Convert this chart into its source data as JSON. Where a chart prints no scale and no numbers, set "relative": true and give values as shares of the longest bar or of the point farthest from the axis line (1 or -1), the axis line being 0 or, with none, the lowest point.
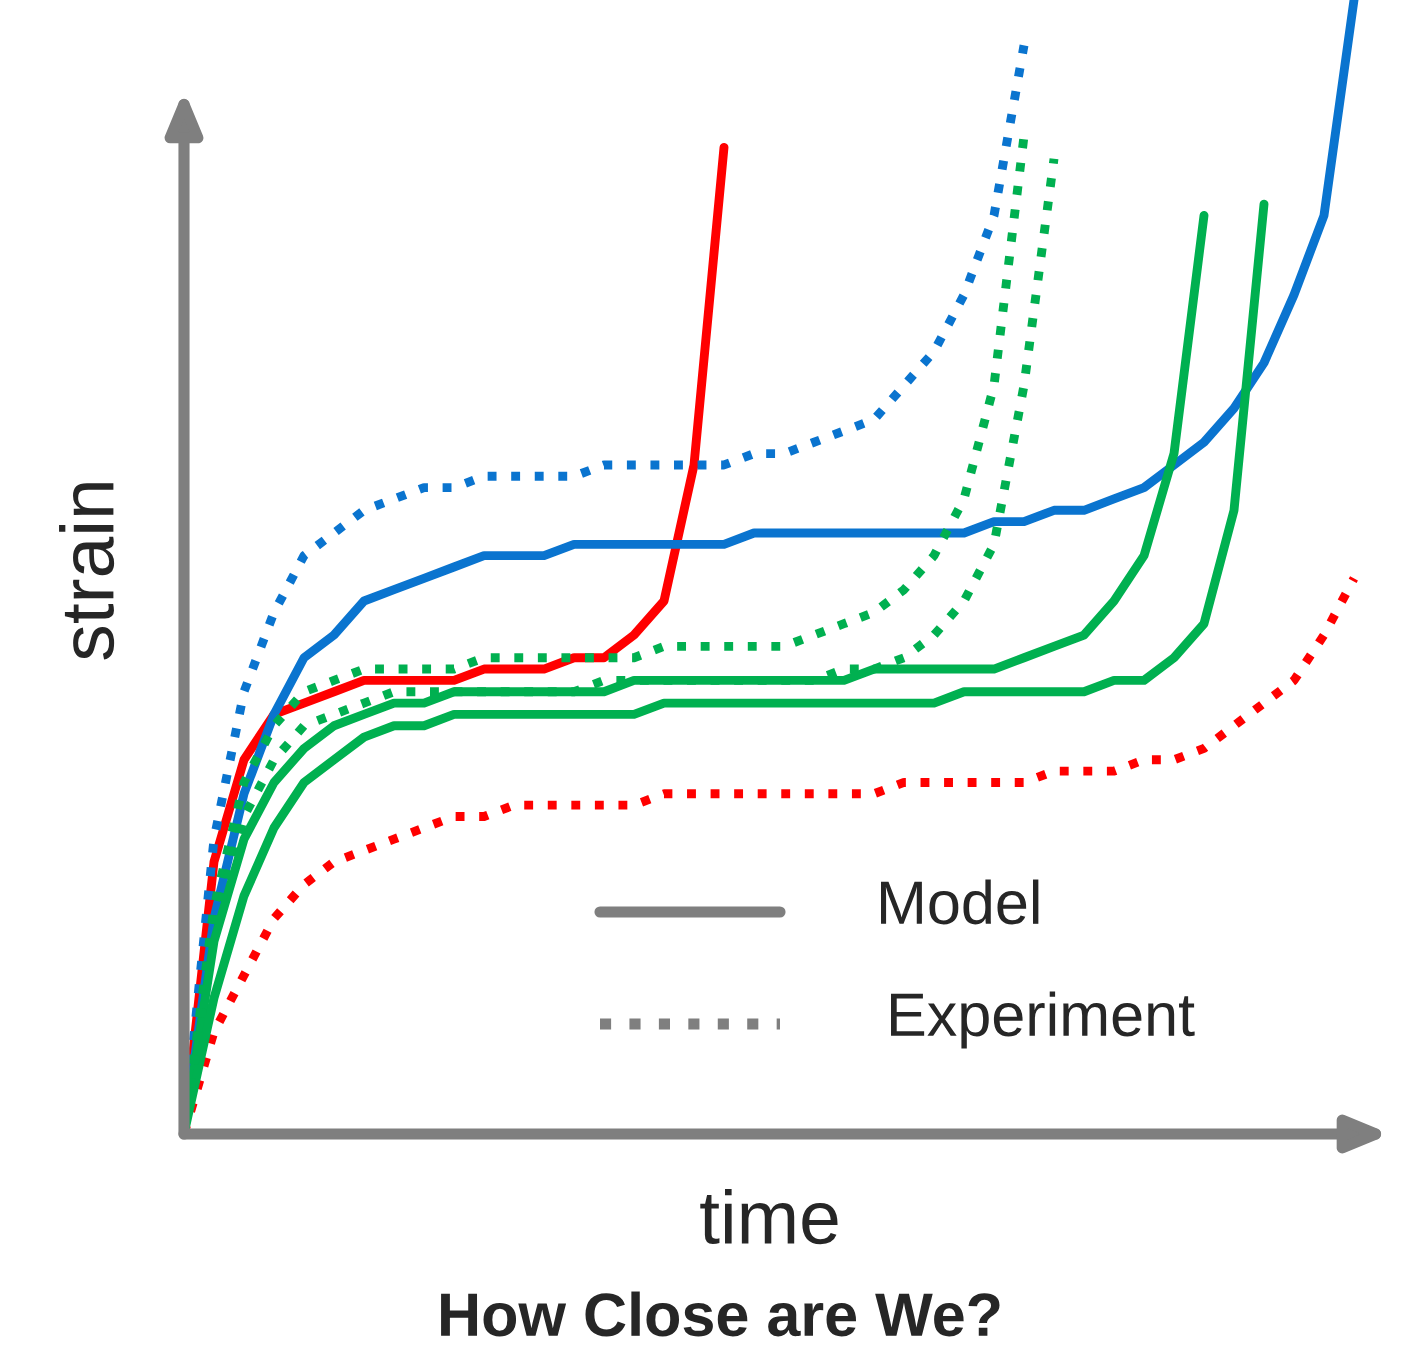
{
  "chart_data": {
    "type": "line",
    "title": "How Close are We?",
    "xlabel": "time",
    "ylabel": "strain",
    "relative": true,
    "annotations": [
      "Model",
      "Experiment"
    ],
    "categories": [
      null,
      null,
      null,
      null,
      null,
      null,
      null,
      null,
      null,
      null,
      null,
      null,
      null,
      null,
      null,
      null,
      null,
      null,
      null,
      null,
      null,
      null,
      null,
      null,
      null,
      null,
      null,
      null,
      null,
      null,
      null,
      null,
      null,
      null,
      null,
      null,
      null,
      null,
      null,
      null,
      null
    ],
    "series": [
      {
        "color": "#ff0000",
        "line_style": "solid",
        "values": [
          0,
          0.24,
          0.33,
          0.37,
          0.38,
          0.39,
          0.4,
          0.4,
          0.4,
          0.4,
          0.41,
          0.41,
          0.41,
          0.42,
          0.42,
          0.44,
          0.47,
          0.59,
          0.87,
          null,
          null,
          null,
          null,
          null,
          null,
          null,
          null,
          null,
          null,
          null,
          null,
          null,
          null,
          null,
          null,
          null,
          null,
          null,
          null,
          null,
          null
        ]
      },
      {
        "color": "#0a74cf",
        "line_style": "solid",
        "values": [
          0,
          0.19,
          0.3,
          0.37,
          0.42,
          0.44,
          0.47,
          0.48,
          0.49,
          0.5,
          0.51,
          0.51,
          0.51,
          0.52,
          0.52,
          0.52,
          0.52,
          0.52,
          0.52,
          0.53,
          0.53,
          0.53,
          0.53,
          0.53,
          0.53,
          0.53,
          0.53,
          0.54,
          0.54,
          0.55,
          0.55,
          0.56,
          0.57,
          0.59,
          0.61,
          0.64,
          0.68,
          0.74,
          0.81,
          1.0,
          null
        ]
      },
      {
        "color": "#0a74cf",
        "line_style": "dotted",
        "values": [
          0,
          0.26,
          0.39,
          0.46,
          0.51,
          0.53,
          0.55,
          0.56,
          0.57,
          0.57,
          0.58,
          0.58,
          0.58,
          0.58,
          0.59,
          0.59,
          0.59,
          0.59,
          0.59,
          0.6,
          0.6,
          0.61,
          0.62,
          0.63,
          0.66,
          0.69,
          0.74,
          0.81,
          0.96,
          null,
          null,
          null,
          null,
          null,
          null,
          null,
          null,
          null,
          null,
          null,
          null
        ]
      },
      {
        "color": "#ff0000",
        "line_style": "dotted",
        "values": [
          0,
          0.09,
          0.14,
          0.19,
          0.22,
          0.24,
          0.25,
          0.26,
          0.27,
          0.28,
          0.28,
          0.29,
          0.29,
          0.29,
          0.29,
          0.29,
          0.3,
          0.3,
          0.3,
          0.3,
          0.3,
          0.3,
          0.3,
          0.3,
          0.31,
          0.31,
          0.31,
          0.31,
          0.31,
          0.32,
          0.32,
          0.32,
          0.33,
          0.33,
          0.34,
          0.36,
          0.38,
          0.4,
          0.44,
          0.49,
          null
        ]
      },
      {
        "color": "#00b050",
        "line_style": "solid",
        "values": [
          0,
          0.17,
          0.26,
          0.31,
          0.34,
          0.36,
          0.37,
          0.38,
          0.38,
          0.39,
          0.39,
          0.39,
          0.39,
          0.39,
          0.39,
          0.4,
          0.4,
          0.4,
          0.4,
          0.4,
          0.4,
          0.4,
          0.4,
          0.41,
          0.41,
          0.41,
          0.41,
          0.41,
          0.42,
          0.43,
          0.44,
          0.47,
          0.51,
          0.6,
          0.81,
          null,
          null,
          null,
          null,
          null,
          null
        ]
      },
      {
        "color": "#00b050",
        "line_style": "solid",
        "values": [
          0,
          0.12,
          0.21,
          0.27,
          0.31,
          0.33,
          0.35,
          0.36,
          0.36,
          0.37,
          0.37,
          0.37,
          0.37,
          0.37,
          0.37,
          0.37,
          0.38,
          0.38,
          0.38,
          0.38,
          0.38,
          0.38,
          0.38,
          0.38,
          0.38,
          0.38,
          0.39,
          0.39,
          0.39,
          0.39,
          0.39,
          0.4,
          0.4,
          0.42,
          0.45,
          0.55,
          0.82,
          null,
          null,
          null,
          null
        ]
      },
      {
        "color": "#00b050",
        "line_style": "dotted",
        "values": [
          0,
          0.2,
          0.31,
          0.36,
          0.39,
          0.4,
          0.41,
          0.41,
          0.41,
          0.41,
          0.42,
          0.42,
          0.42,
          0.42,
          0.42,
          0.42,
          0.43,
          0.43,
          0.43,
          0.43,
          0.43,
          0.44,
          0.45,
          0.46,
          0.48,
          0.51,
          0.56,
          0.66,
          0.88,
          null,
          null,
          null,
          null,
          null,
          null,
          null,
          null,
          null,
          null,
          null,
          null
        ]
      },
      {
        "color": "#00b050",
        "line_style": "dotted",
        "values": [
          0,
          0.18,
          0.28,
          0.33,
          0.36,
          0.37,
          0.38,
          0.39,
          0.39,
          0.39,
          0.39,
          0.39,
          0.39,
          0.39,
          0.4,
          0.4,
          0.4,
          0.4,
          0.4,
          0.4,
          0.4,
          0.4,
          0.41,
          0.41,
          0.42,
          0.44,
          0.47,
          0.52,
          0.66,
          0.86,
          null,
          null,
          null,
          null,
          null,
          null,
          null,
          null,
          null,
          null,
          null
        ]
      }
    ]
  }
}
